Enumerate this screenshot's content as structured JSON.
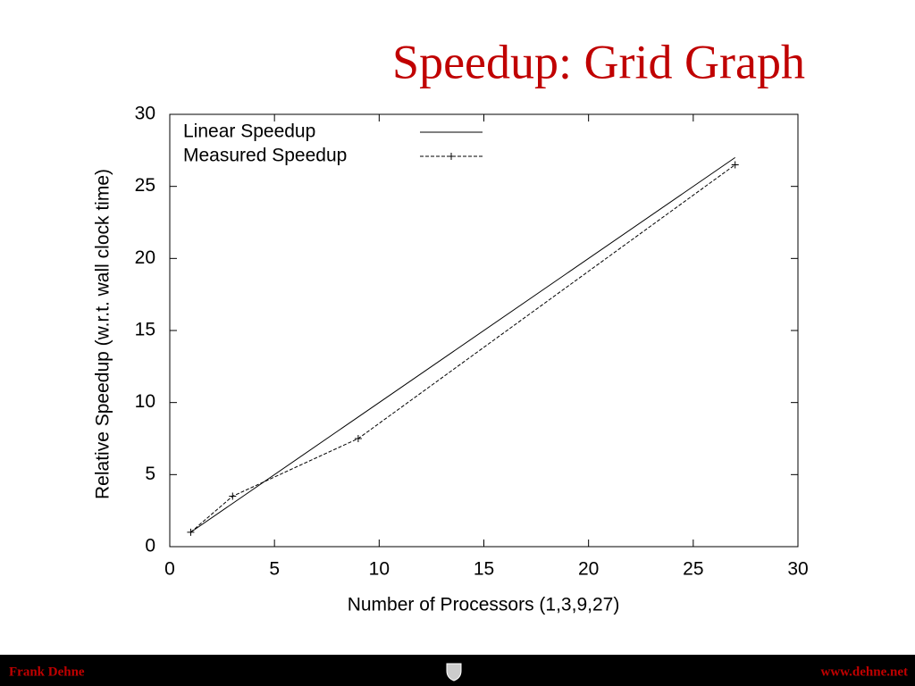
{
  "chart_data": {
    "type": "line",
    "title": "Speedup: Grid Graph",
    "x_label": "Number of Processors (1,3,9,27)",
    "y_label": "Relative Speedup (w.r.t. wall clock time)",
    "x": [
      1,
      3,
      9,
      27
    ],
    "series": [
      {
        "name": "Linear Speedup",
        "color": "#000000",
        "dash": false,
        "marker": false,
        "values": [
          1,
          3,
          9,
          27
        ]
      },
      {
        "name": "Measured Speedup",
        "color": "#000000",
        "dash": true,
        "marker": true,
        "values": [
          1,
          3.5,
          7.5,
          26.5
        ]
      }
    ],
    "xlim": [
      0,
      30
    ],
    "xticks": [
      0,
      5,
      10,
      15,
      20,
      25,
      30
    ],
    "ylim": [
      0,
      30
    ],
    "yticks": [
      0,
      5,
      10,
      15,
      20,
      25,
      30
    ],
    "grid": false,
    "legend": "upper left"
  },
  "footer": {
    "left": "Frank Dehne",
    "right": "www.dehne.net"
  }
}
